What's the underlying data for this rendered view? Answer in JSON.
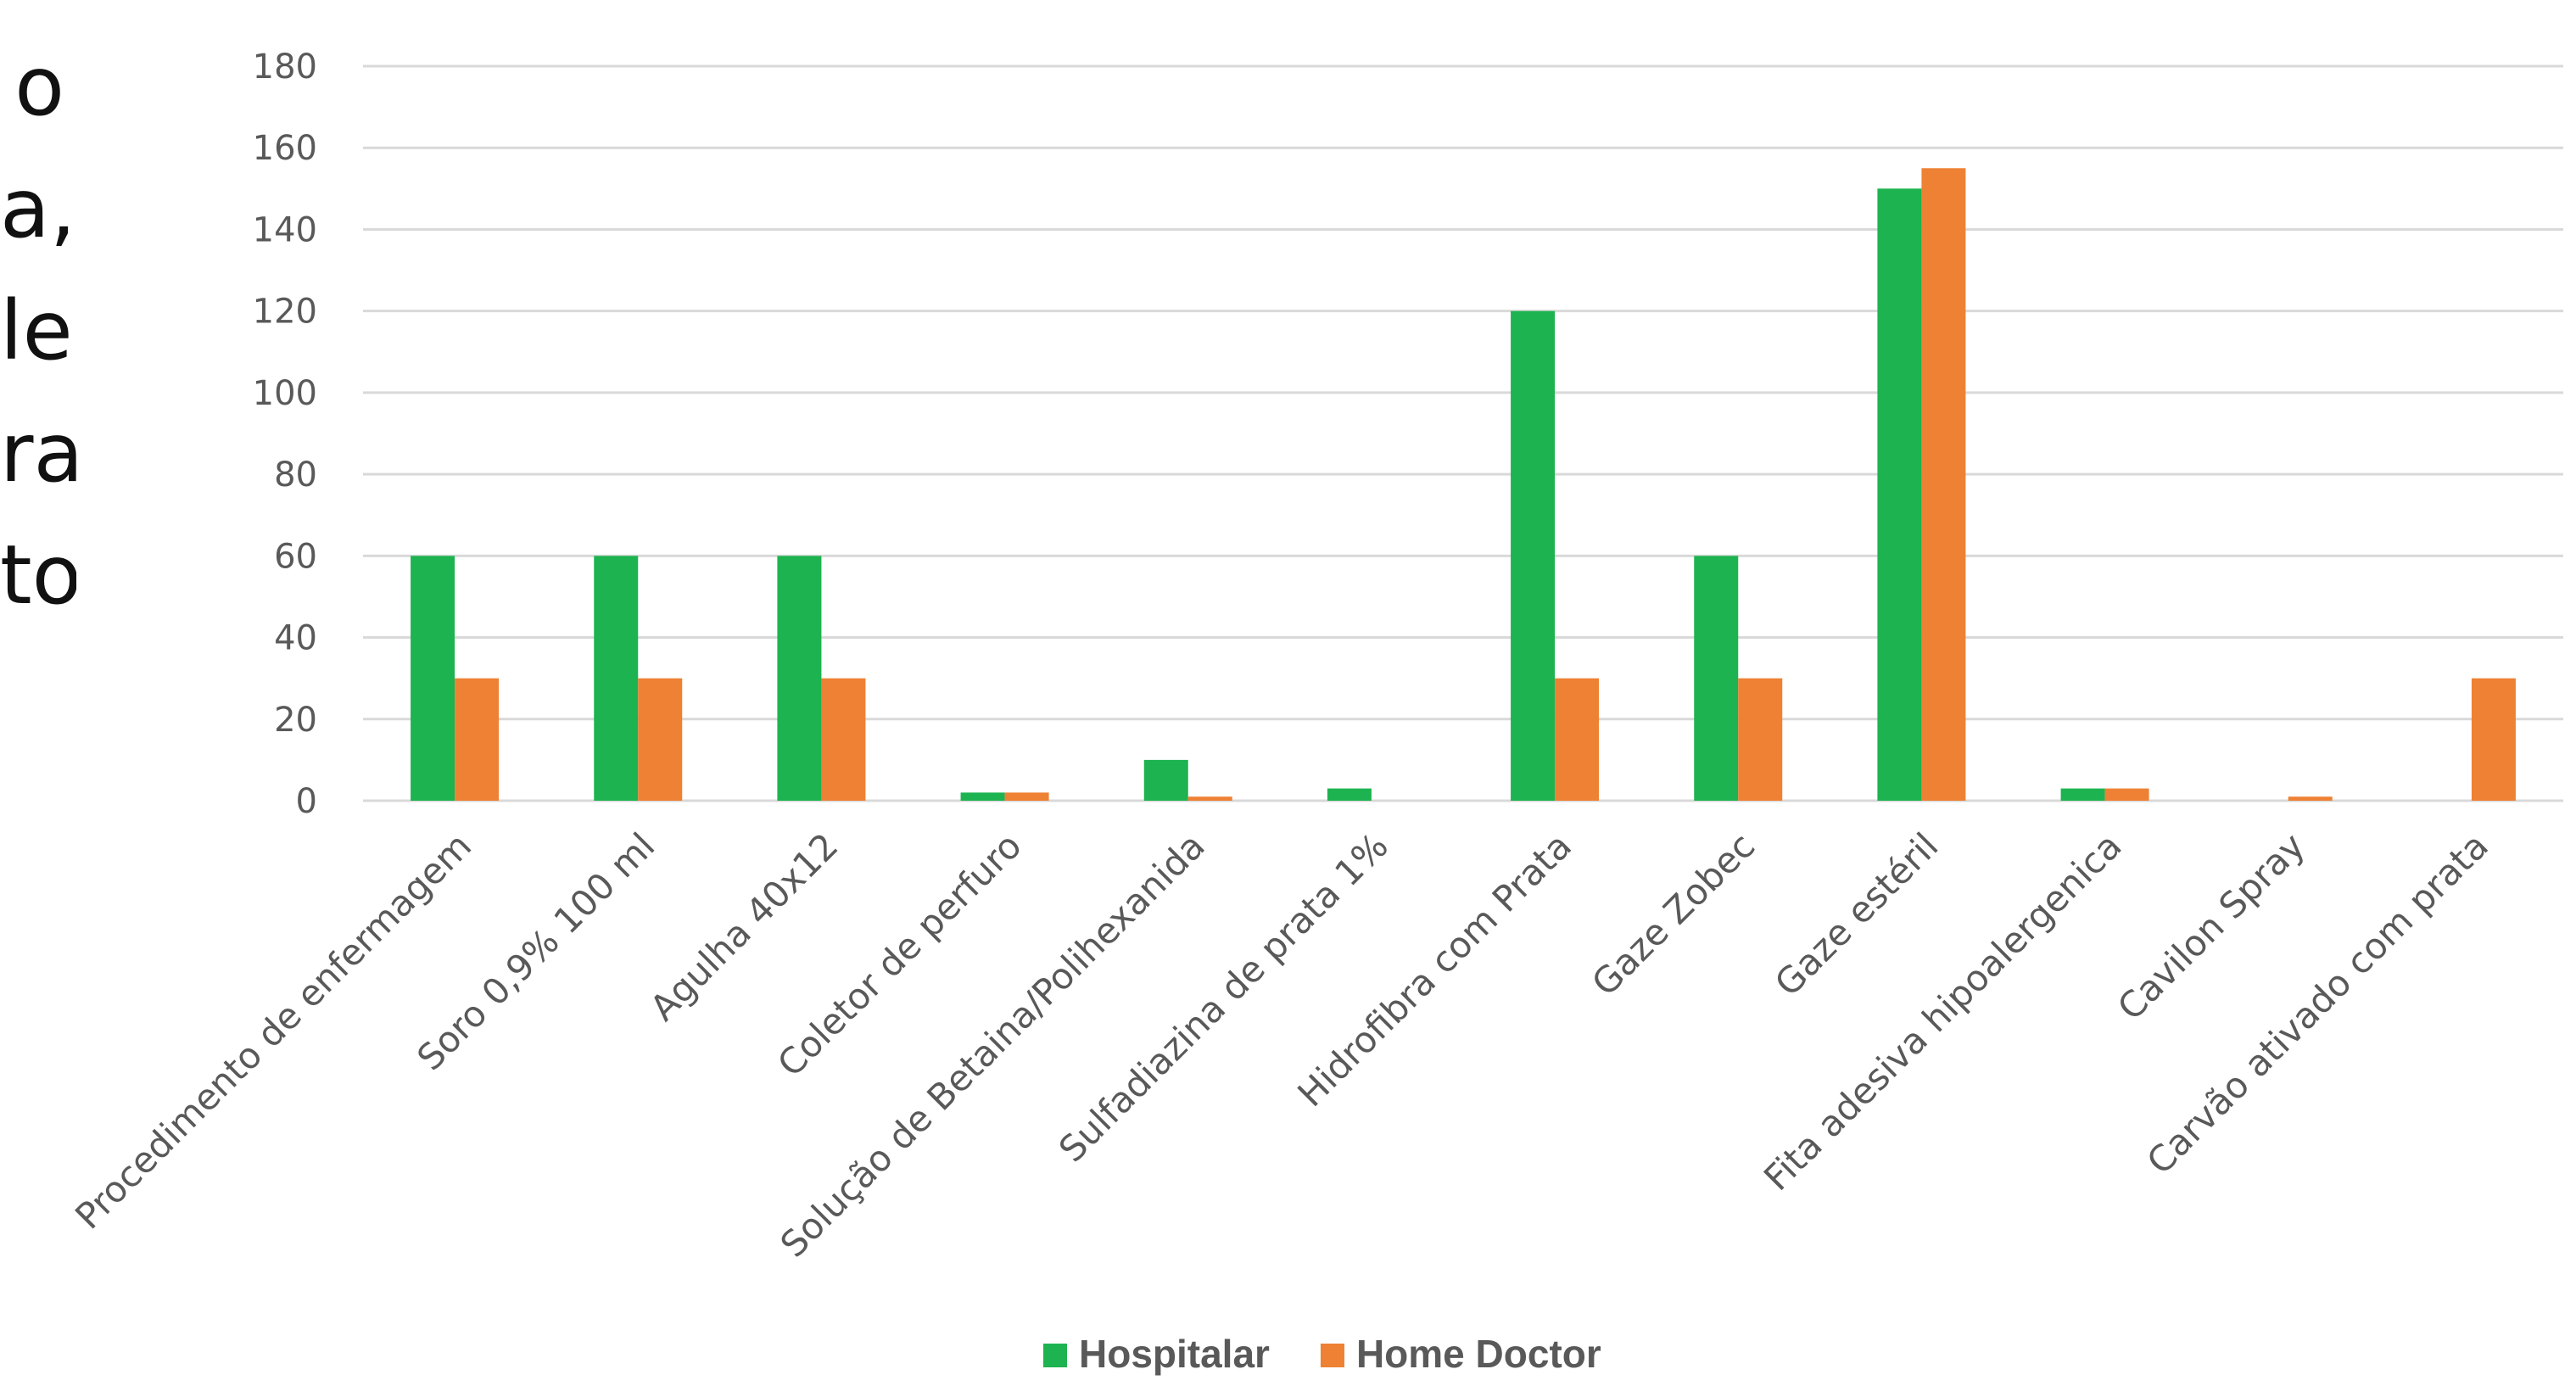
{
  "side_text_fragments": [
    "o",
    "a,",
    "le",
    "ra",
    "to"
  ],
  "colors": {
    "hospitalar": "#1db350",
    "home_doctor": "#ee8133",
    "grid": "#d9d9d9",
    "axis_text": "#595959"
  },
  "chart_data": {
    "type": "bar",
    "title": "",
    "xlabel": "",
    "ylabel": "",
    "ylim": [
      0,
      180
    ],
    "yticks": [
      "0",
      "20",
      "40",
      "60",
      "80",
      "100",
      "120",
      "140",
      "160",
      "180"
    ],
    "grid": true,
    "legend_position": "bottom",
    "categories": [
      "Procedimento de enfermagem",
      "Soro 0,9% 100 ml",
      "Agulha 40x12",
      "Coletor de perfuro",
      "Solução de Betaina/Polihexanida",
      "Sulfadiazina de prata 1%",
      "Hidrofibra com Prata",
      "Gaze Zobec",
      "Gaze estéril",
      "Fita adesiva hipoalergenica",
      "Cavilon Spray",
      "Carvão ativado com prata"
    ],
    "series": [
      {
        "name": "Hospitalar",
        "color": "#1db350",
        "values": [
          60,
          60,
          60,
          2,
          10,
          3,
          120,
          60,
          150,
          3,
          0,
          0
        ]
      },
      {
        "name": "Home Doctor",
        "color": "#ee8133",
        "values": [
          30,
          30,
          30,
          2,
          1,
          0,
          30,
          30,
          155,
          3,
          1,
          30
        ]
      }
    ]
  }
}
